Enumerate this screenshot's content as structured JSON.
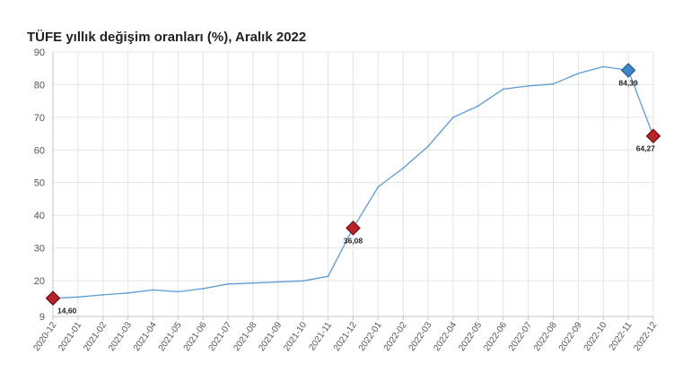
{
  "chart_data": {
    "type": "line",
    "title": "TÜFE yıllık değişim oranları (%), Aralık 2022",
    "categories": [
      "2020-12",
      "2021-01",
      "2021-02",
      "2021-03",
      "2021-04",
      "2021-05",
      "2021-06",
      "2021-07",
      "2021-08",
      "2021-09",
      "2021-10",
      "2021-11",
      "2021-12",
      "2022-01",
      "2022-02",
      "2022-03",
      "2022-04",
      "2022-05",
      "2022-06",
      "2022-07",
      "2022-08",
      "2022-09",
      "2022-10",
      "2022-11",
      "2022-12"
    ],
    "values": [
      14.6,
      14.97,
      15.61,
      16.19,
      17.14,
      16.59,
      17.53,
      18.95,
      19.25,
      19.58,
      19.89,
      21.31,
      36.08,
      48.69,
      54.44,
      61.14,
      69.97,
      73.5,
      78.62,
      79.6,
      80.21,
      83.45,
      85.51,
      84.39,
      64.27
    ],
    "ylim": [
      9,
      90
    ],
    "yticks": [
      9,
      20,
      30,
      40,
      50,
      60,
      70,
      80,
      90
    ],
    "grid": true,
    "legend": "none",
    "line_color": "#5b9bd5",
    "highlighted_points": [
      {
        "category": "2020-12",
        "label": "14,60",
        "color": "#b8232a",
        "border": "#6d1216"
      },
      {
        "category": "2021-12",
        "label": "36,08",
        "color": "#b8232a",
        "border": "#6d1216"
      },
      {
        "category": "2022-11",
        "label": "84,39",
        "color": "#3f86c6",
        "border": "#2a5d8c"
      },
      {
        "category": "2022-12",
        "label": "64,27",
        "color": "#b8232a",
        "border": "#6d1216"
      }
    ]
  }
}
